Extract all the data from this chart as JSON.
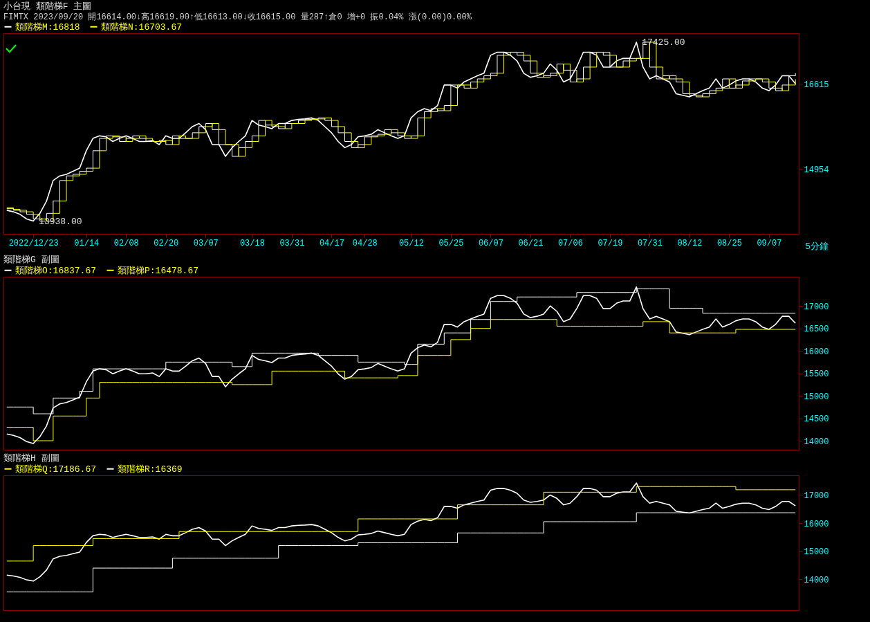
{
  "chart_data": [
    {
      "type": "line",
      "title": "小台現 類階梯F 主圖",
      "subtitle": "FIMTX 2023/09/20 開16614.00↓高16619.00↑低16613.00↓收16615.00 量287↑倉0 增+0 振0.04% 漲(0.00)0.00%",
      "legend": "top",
      "categories": [
        null,
        null,
        null,
        null,
        "2022/12/23",
        null,
        null,
        null,
        null,
        null,
        null,
        null,
        "01/14",
        null,
        null,
        null,
        null,
        null,
        "02/08",
        null,
        null,
        null,
        null,
        null,
        "02/20",
        null,
        null,
        null,
        null,
        null,
        "03/07",
        null,
        null,
        null,
        null,
        null,
        null,
        "03/18",
        null,
        null,
        null,
        null,
        null,
        "03/31",
        null,
        null,
        null,
        null,
        null,
        "04/17",
        null,
        null,
        null,
        null,
        "04/28",
        null,
        null,
        null,
        null,
        null,
        null,
        "05/12",
        null,
        null,
        null,
        null,
        null,
        "05/25",
        null,
        null,
        null,
        null,
        null,
        "06/07",
        null,
        null,
        null,
        null,
        null,
        "06/21",
        null,
        null,
        null,
        null,
        null,
        "07/06",
        null,
        null,
        null,
        null,
        null,
        "07/19",
        null,
        null,
        null,
        null,
        null,
        "07/31",
        null,
        null,
        null,
        null,
        null,
        "08/12",
        null,
        null,
        null,
        null,
        null,
        "08/25",
        null,
        null,
        null,
        null,
        null,
        "09/07",
        null,
        null,
        null,
        null
      ],
      "ylim": [
        13690,
        17600
      ],
      "yticks": [
        14954,
        16615
      ],
      "series": [
        {
          "type": "line",
          "color": "#ffffff",
          "values": [
            14150,
            14120,
            14070,
            13980,
            13938,
            14090,
            14330,
            14730,
            14820,
            14850,
            14910,
            14970,
            15310,
            15550,
            15600,
            15580,
            15490,
            15550,
            15600,
            15550,
            15490,
            15490,
            15510,
            15430,
            15600,
            15550,
            15550,
            15660,
            15780,
            15840,
            15720,
            15430,
            15430,
            15200,
            15370,
            15490,
            15600,
            15900,
            15810,
            15780,
            15740,
            15840,
            15840,
            15900,
            15920,
            15930,
            15950,
            15900,
            15780,
            15660,
            15490,
            15370,
            15430,
            15580,
            15600,
            15630,
            15720,
            15660,
            15600,
            15550,
            15600,
            15950,
            16070,
            16130,
            16090,
            16190,
            16590,
            16590,
            16530,
            16650,
            16710,
            16770,
            16820,
            17170,
            17230,
            17230,
            17170,
            17060,
            16820,
            16740,
            16770,
            16820,
            17000,
            16880,
            16650,
            16710,
            16940,
            17230,
            17230,
            17170,
            16940,
            16940,
            17060,
            17110,
            17110,
            17425,
            16940,
            16710,
            16770,
            16710,
            16650,
            16420,
            16390,
            16360,
            16420,
            16480,
            16530,
            16710,
            16530,
            16590,
            16670,
            16710,
            16710,
            16650,
            16530,
            16480,
            16590,
            16770,
            16770,
            16615
          ]
        },
        {
          "name": "類階梯M:16818",
          "type": "step",
          "color": "#ffffff",
          "values": [
            14180,
            14150,
            14120,
            14070,
            13980,
            13938,
            14090,
            14330,
            14730,
            14820,
            14850,
            14910,
            14970,
            15310,
            15550,
            15600,
            15580,
            15490,
            15550,
            15600,
            15550,
            15490,
            15490,
            15510,
            15430,
            15600,
            15550,
            15550,
            15660,
            15780,
            15840,
            15720,
            15430,
            15430,
            15200,
            15370,
            15490,
            15600,
            15900,
            15810,
            15780,
            15740,
            15840,
            15840,
            15900,
            15920,
            15930,
            15950,
            15900,
            15780,
            15660,
            15490,
            15370,
            15430,
            15580,
            15600,
            15630,
            15720,
            15660,
            15600,
            15550,
            15600,
            15950,
            16070,
            16130,
            16090,
            16190,
            16590,
            16590,
            16530,
            16650,
            16710,
            16770,
            16820,
            17170,
            17230,
            17230,
            17170,
            17060,
            16820,
            16740,
            16770,
            16820,
            17000,
            16880,
            16650,
            16710,
            16940,
            17230,
            17230,
            17170,
            16940,
            16940,
            17060,
            17110,
            17110,
            17425,
            16940,
            16710,
            16770,
            16710,
            16650,
            16420,
            16390,
            16360,
            16420,
            16480,
            16530,
            16710,
            16530,
            16590,
            16670,
            16710,
            16710,
            16650,
            16530,
            16480,
            16590,
            16770,
            16818
          ]
        },
        {
          "name": "類階梯N:16703.67",
          "type": "step",
          "color": "#ffff00",
          "values": [
            14200,
            14170,
            14150,
            14120,
            14070,
            13980,
            13938,
            14090,
            14330,
            14730,
            14820,
            14850,
            14910,
            14970,
            15310,
            15550,
            15600,
            15580,
            15490,
            15550,
            15600,
            15550,
            15490,
            15490,
            15510,
            15430,
            15600,
            15550,
            15550,
            15660,
            15780,
            15840,
            15720,
            15430,
            15430,
            15200,
            15370,
            15490,
            15600,
            15900,
            15810,
            15780,
            15740,
            15840,
            15840,
            15900,
            15920,
            15930,
            15950,
            15900,
            15780,
            15660,
            15490,
            15370,
            15430,
            15580,
            15600,
            15630,
            15720,
            15660,
            15600,
            15550,
            15600,
            15950,
            16070,
            16130,
            16090,
            16190,
            16590,
            16590,
            16530,
            16650,
            16710,
            16770,
            16820,
            17170,
            17230,
            17230,
            17170,
            17060,
            16820,
            16740,
            16770,
            16820,
            17000,
            16880,
            16650,
            16710,
            16940,
            17230,
            17230,
            17170,
            16940,
            16940,
            17060,
            17110,
            17110,
            17425,
            16940,
            16710,
            16770,
            16710,
            16650,
            16420,
            16390,
            16360,
            16420,
            16480,
            16530,
            16710,
            16530,
            16590,
            16670,
            16710,
            16710,
            16650,
            16530,
            16480,
            16590,
            16703.67
          ]
        }
      ],
      "annotations": [
        "17425.00",
        "13938.00",
        "5分鐘"
      ]
    },
    {
      "type": "line",
      "title": "類階梯G 副圖",
      "legend": "top",
      "tick_labels": "y",
      "categories": [
        null,
        null,
        null,
        null,
        null,
        null,
        null,
        null,
        null,
        null,
        null,
        null,
        null,
        null,
        null,
        null,
        null,
        null,
        null,
        null,
        null,
        null,
        null,
        null,
        null,
        null,
        null,
        null,
        null,
        null,
        null,
        null,
        null,
        null,
        null,
        null,
        null,
        null,
        null,
        null,
        null,
        null,
        null,
        null,
        null,
        null,
        null,
        null,
        null,
        null,
        null,
        null,
        null,
        null,
        null,
        null,
        null,
        null,
        null,
        null,
        null,
        null,
        null,
        null,
        null,
        null,
        null,
        null,
        null,
        null,
        null,
        null,
        null,
        null,
        null,
        null,
        null,
        null,
        null,
        null,
        null,
        null,
        null,
        null,
        null,
        null,
        null,
        null,
        null,
        null,
        null,
        null,
        null,
        null,
        null,
        null,
        null,
        null,
        null,
        null,
        null,
        null,
        null,
        null,
        null,
        null,
        null,
        null,
        null,
        null,
        null,
        null,
        null,
        null,
        null,
        null,
        null,
        null,
        null,
        null
      ],
      "ylim": [
        13800,
        17650
      ],
      "yticks": [
        14000,
        14500,
        15000,
        15500,
        16000,
        16500,
        17000
      ],
      "series": [
        {
          "type": "line",
          "color": "#ffffff",
          "values": [
            14150,
            14120,
            14070,
            13980,
            13938,
            14090,
            14330,
            14730,
            14820,
            14850,
            14910,
            14970,
            15310,
            15550,
            15600,
            15580,
            15490,
            15550,
            15600,
            15550,
            15490,
            15490,
            15510,
            15430,
            15600,
            15550,
            15550,
            15660,
            15780,
            15840,
            15720,
            15430,
            15430,
            15200,
            15370,
            15490,
            15600,
            15900,
            15810,
            15780,
            15740,
            15840,
            15840,
            15900,
            15920,
            15930,
            15950,
            15900,
            15780,
            15660,
            15490,
            15370,
            15430,
            15580,
            15600,
            15630,
            15720,
            15660,
            15600,
            15550,
            15600,
            15950,
            16070,
            16130,
            16090,
            16190,
            16590,
            16590,
            16530,
            16650,
            16710,
            16770,
            16820,
            17170,
            17230,
            17230,
            17170,
            17060,
            16820,
            16740,
            16770,
            16820,
            17000,
            16880,
            16650,
            16710,
            16940,
            17230,
            17230,
            17170,
            16940,
            16940,
            17060,
            17110,
            17110,
            17425,
            16940,
            16710,
            16770,
            16710,
            16650,
            16420,
            16390,
            16360,
            16420,
            16480,
            16530,
            16710,
            16530,
            16590,
            16670,
            16710,
            16710,
            16650,
            16530,
            16480,
            16590,
            16770,
            16770,
            16615
          ]
        },
        {
          "name": "類階梯O:16837.67",
          "type": "step",
          "color": "#ffffff",
          "values": [
            14750,
            14750,
            14750,
            14750,
            14600,
            14600,
            14600,
            14950,
            14950,
            14950,
            14950,
            15100,
            15100,
            15600,
            15600,
            15600,
            15600,
            15600,
            15600,
            15600,
            15600,
            15600,
            15600,
            15600,
            15750,
            15750,
            15750,
            15750,
            15750,
            15750,
            15750,
            15750,
            15750,
            15750,
            15650,
            15650,
            15650,
            15950,
            15950,
            15950,
            15950,
            15950,
            15950,
            15950,
            15950,
            15950,
            15950,
            15900,
            15900,
            15900,
            15900,
            15900,
            15900,
            15750,
            15750,
            15750,
            15750,
            15750,
            15750,
            15750,
            15700,
            15700,
            16150,
            16150,
            16150,
            16150,
            16400,
            16400,
            16400,
            16400,
            16700,
            16700,
            16700,
            17100,
            17100,
            17100,
            17100,
            17200,
            17200,
            17200,
            17200,
            17200,
            17200,
            17200,
            17200,
            17200,
            17300,
            17300,
            17300,
            17300,
            17300,
            17300,
            17300,
            17300,
            17300,
            17380,
            17380,
            17380,
            17380,
            17380,
            16950,
            16950,
            16950,
            16950,
            16950,
            16837.67,
            16837.67,
            16837.67,
            16837.67,
            16837.67,
            16837.67,
            16837.67,
            16837.67,
            16837.67,
            16837.67,
            16837.67,
            16837.67,
            16837.67,
            16837.67,
            16837.67
          ]
        },
        {
          "name": "類階梯P:16478.67",
          "type": "step",
          "color": "#ffff00",
          "values": [
            14300,
            14300,
            14300,
            14300,
            14000,
            14000,
            14000,
            14550,
            14550,
            14550,
            14550,
            14550,
            14950,
            14950,
            15300,
            15300,
            15300,
            15300,
            15300,
            15300,
            15300,
            15300,
            15300,
            15300,
            15300,
            15300,
            15300,
            15300,
            15300,
            15300,
            15300,
            15300,
            15300,
            15300,
            15250,
            15250,
            15250,
            15250,
            15250,
            15250,
            15550,
            15550,
            15550,
            15550,
            15550,
            15550,
            15550,
            15550,
            15550,
            15550,
            15550,
            15400,
            15400,
            15400,
            15400,
            15400,
            15400,
            15400,
            15400,
            15450,
            15450,
            15450,
            15900,
            15900,
            15900,
            15900,
            15900,
            16250,
            16250,
            16250,
            16500,
            16500,
            16500,
            16700,
            16700,
            16700,
            16700,
            16700,
            16700,
            16700,
            16700,
            16700,
            16700,
            16550,
            16550,
            16550,
            16550,
            16550,
            16550,
            16550,
            16550,
            16550,
            16550,
            16550,
            16550,
            16550,
            16650,
            16650,
            16650,
            16650,
            16400,
            16400,
            16400,
            16400,
            16400,
            16400,
            16400,
            16400,
            16400,
            16400,
            16478.67,
            16478.67,
            16478.67,
            16478.67,
            16478.67,
            16478.67,
            16478.67,
            16478.67,
            16478.67,
            16478.67
          ]
        }
      ]
    },
    {
      "type": "line",
      "title": "類階梯H 副圖",
      "legend": "top",
      "tick_labels": "y",
      "categories": [
        null,
        null,
        null,
        null,
        null,
        null,
        null,
        null,
        null,
        null,
        null,
        null,
        null,
        null,
        null,
        null,
        null,
        null,
        null,
        null,
        null,
        null,
        null,
        null,
        null,
        null,
        null,
        null,
        null,
        null,
        null,
        null,
        null,
        null,
        null,
        null,
        null,
        null,
        null,
        null,
        null,
        null,
        null,
        null,
        null,
        null,
        null,
        null,
        null,
        null,
        null,
        null,
        null,
        null,
        null,
        null,
        null,
        null,
        null,
        null,
        null,
        null,
        null,
        null,
        null,
        null,
        null,
        null,
        null,
        null,
        null,
        null,
        null,
        null,
        null,
        null,
        null,
        null,
        null,
        null,
        null,
        null,
        null,
        null,
        null,
        null,
        null,
        null,
        null,
        null,
        null,
        null,
        null,
        null,
        null,
        null,
        null,
        null,
        null,
        null,
        null,
        null,
        null,
        null,
        null,
        null,
        null,
        null,
        null,
        null,
        null,
        null,
        null,
        null,
        null,
        null,
        null,
        null,
        null,
        null
      ],
      "ylim": [
        12900,
        17700
      ],
      "yticks": [
        14000,
        15000,
        16000,
        17000
      ],
      "series": [
        {
          "type": "line",
          "color": "#ffffff",
          "values": [
            14150,
            14120,
            14070,
            13980,
            13938,
            14090,
            14330,
            14730,
            14820,
            14850,
            14910,
            14970,
            15310,
            15550,
            15600,
            15580,
            15490,
            15550,
            15600,
            15550,
            15490,
            15490,
            15510,
            15430,
            15600,
            15550,
            15550,
            15660,
            15780,
            15840,
            15720,
            15430,
            15430,
            15200,
            15370,
            15490,
            15600,
            15900,
            15810,
            15780,
            15740,
            15840,
            15840,
            15900,
            15920,
            15930,
            15950,
            15900,
            15780,
            15660,
            15490,
            15370,
            15430,
            15580,
            15600,
            15630,
            15720,
            15660,
            15600,
            15550,
            15600,
            15950,
            16070,
            16130,
            16090,
            16190,
            16590,
            16590,
            16530,
            16650,
            16710,
            16770,
            16820,
            17170,
            17230,
            17230,
            17170,
            17060,
            16820,
            16740,
            16770,
            16820,
            17000,
            16880,
            16650,
            16710,
            16940,
            17230,
            17230,
            17170,
            16940,
            16940,
            17060,
            17110,
            17110,
            17425,
            16940,
            16710,
            16770,
            16710,
            16650,
            16420,
            16390,
            16360,
            16420,
            16480,
            16530,
            16710,
            16530,
            16590,
            16670,
            16710,
            16710,
            16650,
            16530,
            16480,
            16590,
            16770,
            16770,
            16615
          ]
        },
        {
          "name": "類階梯Q:17186.67",
          "type": "step",
          "color": "#ffff00",
          "values": [
            14650,
            14650,
            14650,
            14650,
            15200,
            15200,
            15200,
            15200,
            15200,
            15200,
            15200,
            15200,
            15200,
            15450,
            15450,
            15450,
            15450,
            15450,
            15450,
            15450,
            15450,
            15450,
            15450,
            15450,
            15450,
            15450,
            15700,
            15700,
            15700,
            15700,
            15700,
            15700,
            15700,
            15700,
            15700,
            15700,
            15700,
            15700,
            15700,
            15700,
            15700,
            15700,
            15700,
            15700,
            15700,
            15700,
            15700,
            15700,
            15700,
            15700,
            15700,
            15700,
            15700,
            16150,
            16150,
            16150,
            16150,
            16150,
            16150,
            16150,
            16150,
            16150,
            16150,
            16150,
            16150,
            16150,
            16150,
            16150,
            16650,
            16650,
            16650,
            16650,
            16650,
            16650,
            16650,
            16650,
            16650,
            16650,
            16650,
            16650,
            16650,
            17100,
            17100,
            17100,
            17100,
            17100,
            17100,
            17100,
            17100,
            17100,
            17100,
            17100,
            17100,
            17100,
            17100,
            17300,
            17300,
            17300,
            17300,
            17300,
            17300,
            17300,
            17300,
            17300,
            17300,
            17300,
            17300,
            17300,
            17300,
            17300,
            17186.67,
            17186.67,
            17186.67,
            17186.67,
            17186.67,
            17186.67,
            17186.67,
            17186.67,
            17186.67,
            17186.67
          ]
        },
        {
          "name": "類階梯R:16369",
          "type": "step",
          "color": "#ffffff",
          "values": [
            13550,
            13550,
            13550,
            13550,
            13550,
            13550,
            13550,
            13550,
            13550,
            13550,
            13550,
            13550,
            13550,
            14400,
            14400,
            14400,
            14400,
            14400,
            14400,
            14400,
            14400,
            14400,
            14400,
            14400,
            14400,
            14750,
            14750,
            14750,
            14750,
            14750,
            14750,
            14750,
            14750,
            14750,
            14750,
            14750,
            14750,
            14750,
            14750,
            14750,
            14750,
            15200,
            15200,
            15200,
            15200,
            15200,
            15200,
            15200,
            15200,
            15200,
            15200,
            15200,
            15200,
            15300,
            15300,
            15300,
            15300,
            15300,
            15300,
            15300,
            15300,
            15300,
            15300,
            15300,
            15300,
            15300,
            15300,
            15300,
            15650,
            15650,
            15650,
            15650,
            15650,
            15650,
            15650,
            15650,
            15650,
            15650,
            15650,
            15650,
            15650,
            16050,
            16050,
            16050,
            16050,
            16050,
            16050,
            16050,
            16050,
            16050,
            16050,
            16050,
            16050,
            16050,
            16050,
            16369,
            16369,
            16369,
            16369,
            16369,
            16369,
            16369,
            16369,
            16369,
            16369,
            16369,
            16369,
            16369,
            16369,
            16369,
            16369,
            16369,
            16369,
            16369,
            16369,
            16369,
            16369,
            16369,
            16369,
            16369
          ]
        }
      ]
    }
  ]
}
